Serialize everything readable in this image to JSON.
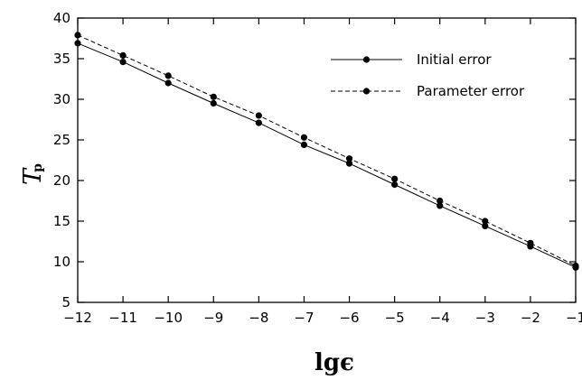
{
  "chart_data": {
    "type": "line",
    "xlabel": "lgϵ",
    "ylabel": "T",
    "ylabel_subscript": "p",
    "xlim": [
      -12,
      -1
    ],
    "ylim": [
      5,
      40
    ],
    "x_ticks": [
      -12,
      -11,
      -10,
      -9,
      -8,
      -7,
      -6,
      -5,
      -4,
      -3,
      -2,
      -1
    ],
    "y_ticks": [
      5,
      10,
      15,
      20,
      25,
      30,
      35,
      40
    ],
    "x_tick_labels": [
      "−12",
      "−11",
      "−10",
      "−9",
      "−8",
      "−7",
      "−6",
      "−5",
      "−4",
      "−3",
      "−2",
      "−1"
    ],
    "y_tick_labels": [
      "5",
      "10",
      "15",
      "20",
      "25",
      "30",
      "35",
      "40"
    ],
    "grid": false,
    "legend_position": "top-right",
    "x": [
      -12,
      -11,
      -10,
      -9,
      -8,
      -7,
      -6,
      -5,
      -4,
      -3,
      -2,
      -1
    ],
    "series": [
      {
        "name": "Initial error",
        "line_style": "solid",
        "marker": "circle",
        "color": "#000000",
        "values": [
          36.9,
          34.6,
          32.0,
          29.5,
          27.1,
          24.4,
          22.1,
          19.5,
          16.9,
          14.4,
          11.9,
          9.3
        ]
      },
      {
        "name": "Parameter error",
        "line_style": "dashed",
        "marker": "circle",
        "color": "#000000",
        "values": [
          37.9,
          35.4,
          32.9,
          30.3,
          28.0,
          25.3,
          22.7,
          20.2,
          17.5,
          15.0,
          12.3,
          9.5
        ]
      }
    ]
  }
}
